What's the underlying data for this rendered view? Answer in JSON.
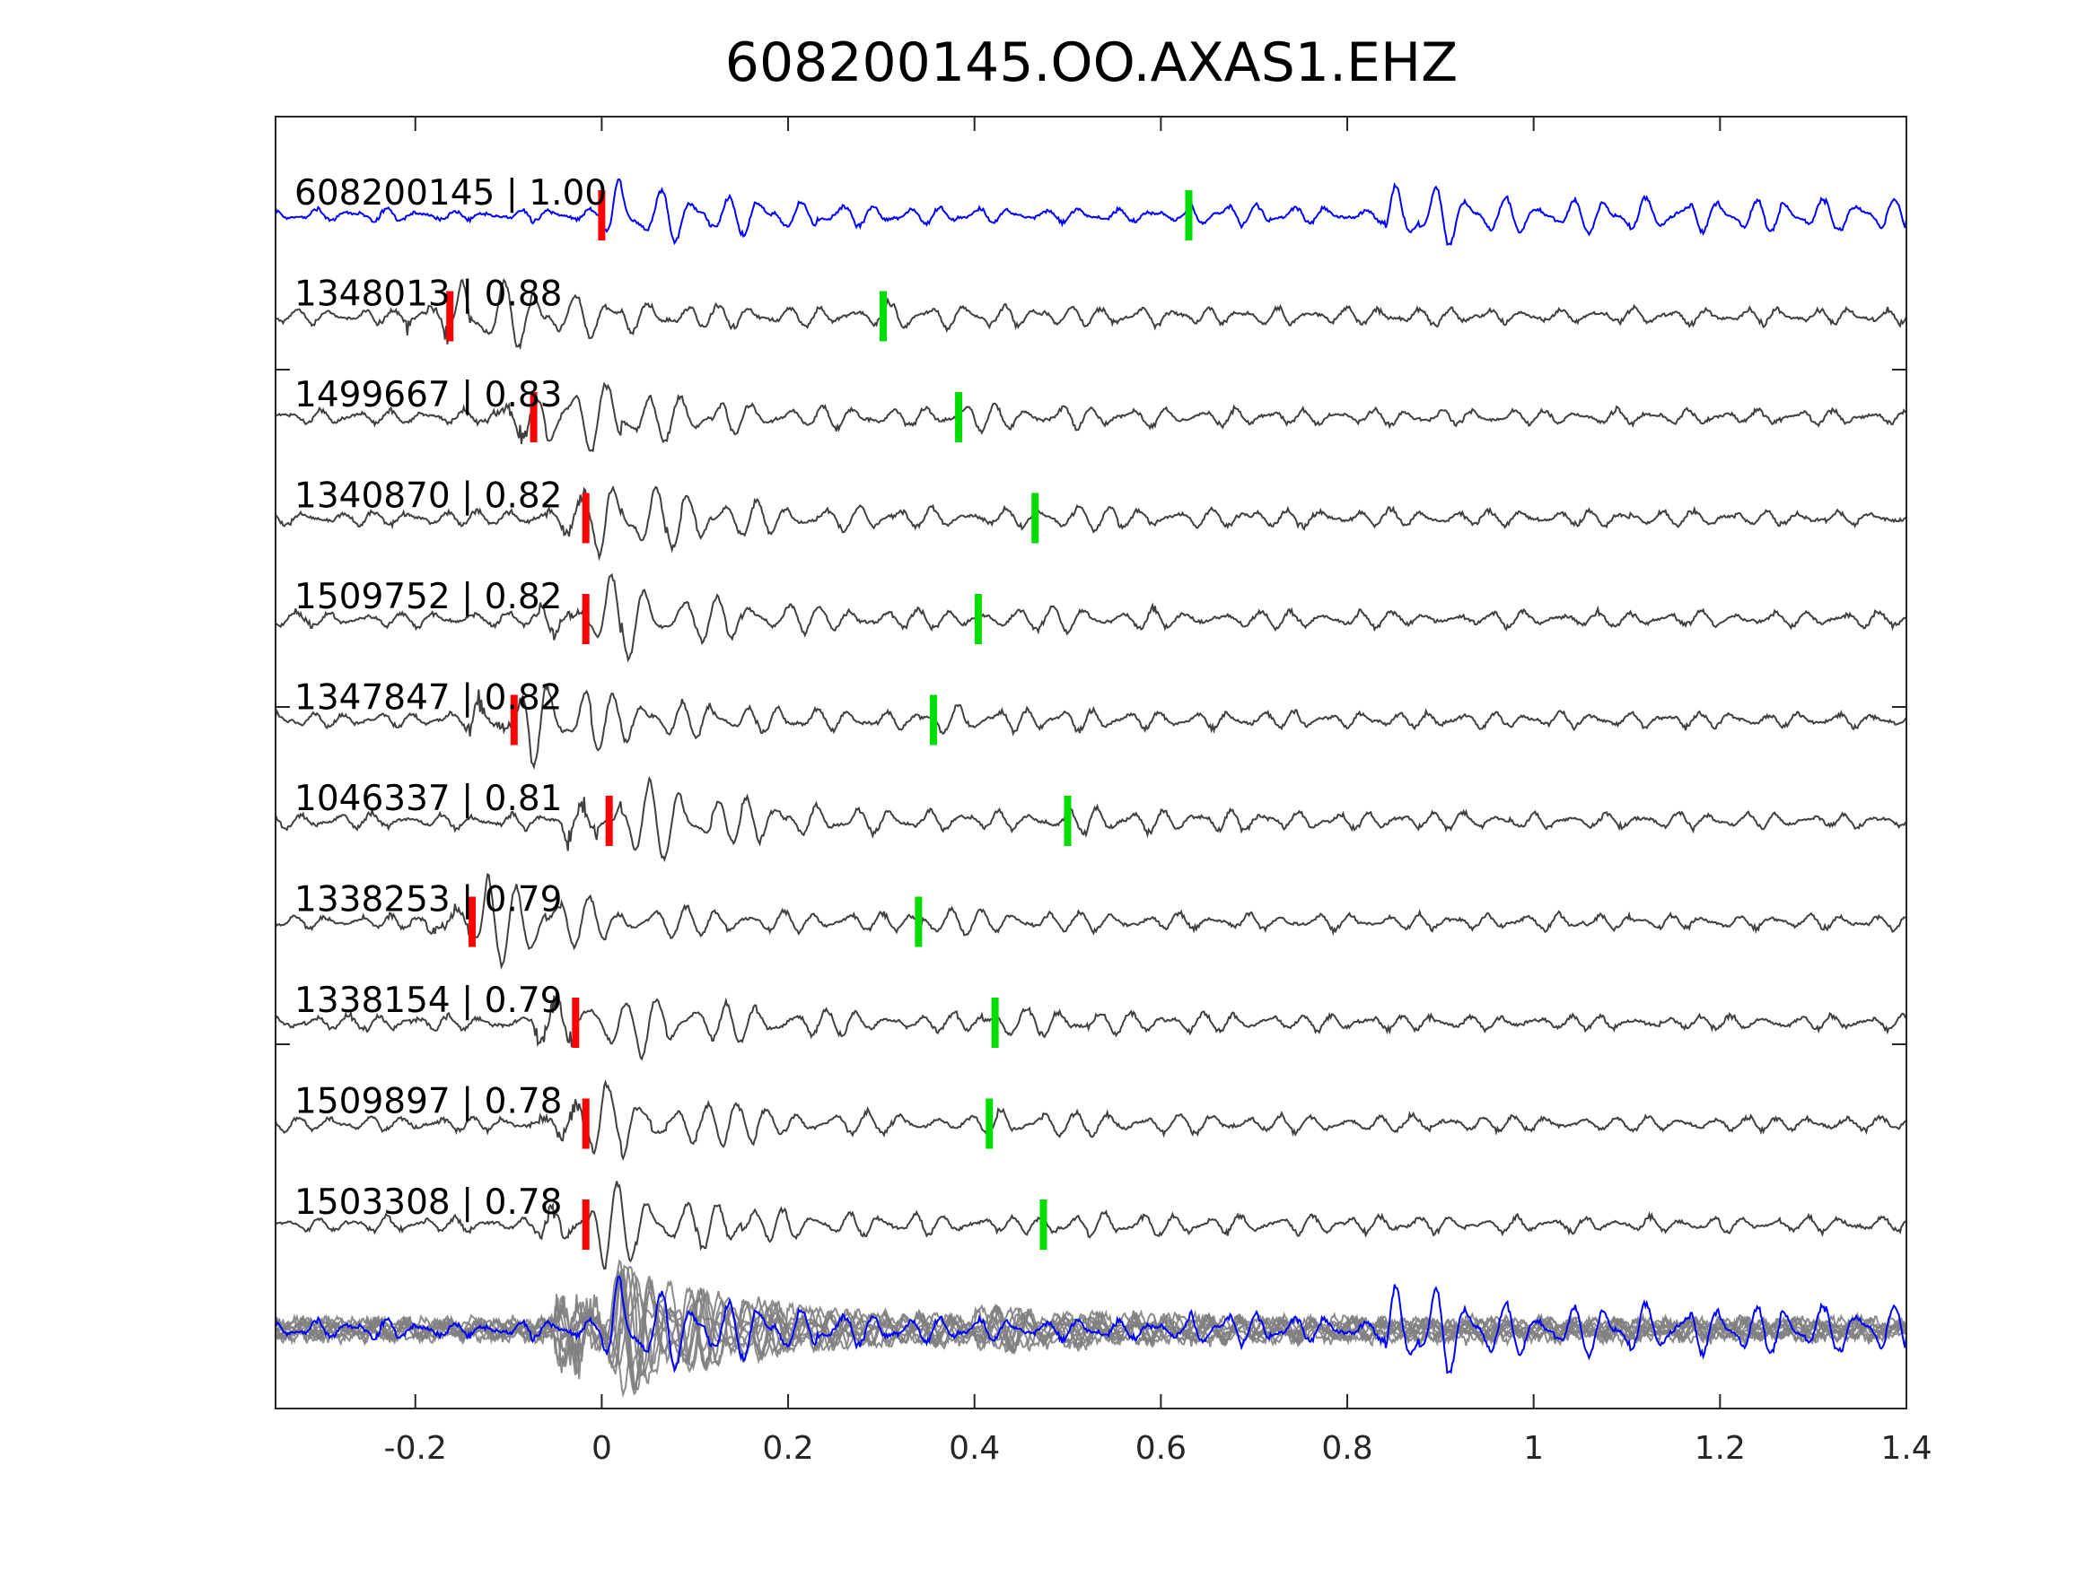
{
  "chart_data": {
    "type": "line",
    "title": "608200145.OO.AXAS1.EHZ",
    "xlabel": "",
    "ylabel": "",
    "xlim": [
      -0.35,
      1.4
    ],
    "xticks": [
      {
        "value": -0.2,
        "label": "-0.2"
      },
      {
        "value": 0,
        "label": "0"
      },
      {
        "value": 0.2,
        "label": "0.2"
      },
      {
        "value": 0.4,
        "label": "0.4"
      },
      {
        "value": 0.6,
        "label": "0.6"
      },
      {
        "value": 0.8,
        "label": "0.8"
      },
      {
        "value": 1.0,
        "label": "1"
      },
      {
        "value": 1.2,
        "label": "1.2"
      },
      {
        "value": 1.4,
        "label": "1.4"
      }
    ],
    "grid": false,
    "colors": {
      "master": "#0000ff",
      "trace": "#404040",
      "stack": "#808080",
      "p_pick": "#ff0000",
      "s_pick": "#00dd00",
      "axes": "#262626"
    },
    "traces": [
      {
        "label": "608200145 | 1.00",
        "role": "master",
        "p_pick": 0.0,
        "s_pick": 0.63
      },
      {
        "label": "1348013 | 0.88",
        "p_pick": -0.163,
        "s_pick": 0.302
      },
      {
        "label": "1499667 | 0.83",
        "p_pick": -0.073,
        "s_pick": 0.383
      },
      {
        "label": "1340870 | 0.82",
        "p_pick": -0.017,
        "s_pick": 0.465
      },
      {
        "label": "1509752 | 0.82",
        "p_pick": -0.017,
        "s_pick": 0.404
      },
      {
        "label": "1347847 | 0.82",
        "p_pick": -0.094,
        "s_pick": 0.356
      },
      {
        "label": "1046337 | 0.81",
        "p_pick": 0.008,
        "s_pick": 0.5
      },
      {
        "label": "1338253 | 0.79",
        "p_pick": -0.139,
        "s_pick": 0.34
      },
      {
        "label": "1338154 | 0.79",
        "p_pick": -0.028,
        "s_pick": 0.422
      },
      {
        "label": "1509897 | 0.78",
        "p_pick": -0.017,
        "s_pick": 0.416
      },
      {
        "label": "1503308 | 0.78",
        "p_pick": -0.017,
        "s_pick": 0.474
      }
    ],
    "stack": {
      "overlay_count": 10
    }
  }
}
